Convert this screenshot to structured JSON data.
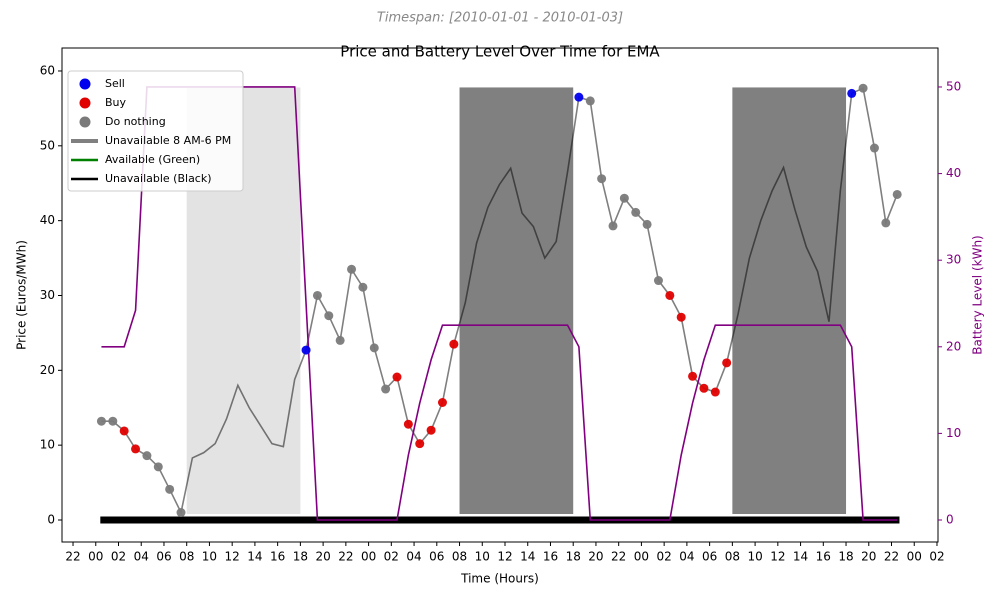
{
  "chart_data": {
    "type": "dual_axis_line",
    "subtitle": "Timespan: [2010-01-01 - 2010-01-03]",
    "title": "Price and Battery Level Over Time for EMA",
    "xlabel": "Time (Hours)",
    "ylabel": "Price (Euros/MWh)",
    "y2label": "Battery Level (kWh)",
    "xlim": [
      -2.97,
      74.09
    ],
    "ylim": [
      -2.94,
      63.07
    ],
    "y2lim": [
      -2.54,
      54.5
    ],
    "xticks": [
      {
        "value": -2,
        "label": "22"
      },
      {
        "value": 0,
        "label": "00"
      },
      {
        "value": 2,
        "label": "02"
      },
      {
        "value": 4,
        "label": "04"
      },
      {
        "value": 6,
        "label": "06"
      },
      {
        "value": 8,
        "label": "08"
      },
      {
        "value": 10,
        "label": "10"
      },
      {
        "value": 12,
        "label": "12"
      },
      {
        "value": 14,
        "label": "14"
      },
      {
        "value": 16,
        "label": "16"
      },
      {
        "value": 18,
        "label": "18"
      },
      {
        "value": 20,
        "label": "20"
      },
      {
        "value": 22,
        "label": "22"
      },
      {
        "value": 24,
        "label": "00"
      },
      {
        "value": 26,
        "label": "02"
      },
      {
        "value": 28,
        "label": "04"
      },
      {
        "value": 30,
        "label": "06"
      },
      {
        "value": 32,
        "label": "08"
      },
      {
        "value": 34,
        "label": "10"
      },
      {
        "value": 36,
        "label": "12"
      },
      {
        "value": 38,
        "label": "14"
      },
      {
        "value": 40,
        "label": "16"
      },
      {
        "value": 42,
        "label": "18"
      },
      {
        "value": 44,
        "label": "20"
      },
      {
        "value": 46,
        "label": "22"
      },
      {
        "value": 48,
        "label": "00"
      },
      {
        "value": 50,
        "label": "02"
      },
      {
        "value": 52,
        "label": "04"
      },
      {
        "value": 54,
        "label": "06"
      },
      {
        "value": 56,
        "label": "08"
      },
      {
        "value": 58,
        "label": "10"
      },
      {
        "value": 60,
        "label": "12"
      },
      {
        "value": 62,
        "label": "14"
      },
      {
        "value": 64,
        "label": "16"
      },
      {
        "value": 66,
        "label": "18"
      },
      {
        "value": 68,
        "label": "20"
      },
      {
        "value": 70,
        "label": "22"
      },
      {
        "value": 72,
        "label": "00"
      },
      {
        "value": 74,
        "label": "02"
      }
    ],
    "yticks": [
      0,
      10,
      20,
      30,
      40,
      50,
      60
    ],
    "y2ticks": [
      0,
      10,
      20,
      30,
      40,
      50
    ],
    "y2color": "purple",
    "x": [
      0.5,
      1.5,
      2.5,
      3.5,
      4.5,
      5.5,
      6.5,
      7.5,
      8.5,
      9.5,
      10.5,
      11.5,
      12.5,
      13.5,
      14.5,
      15.5,
      16.5,
      17.5,
      18.5,
      19.5,
      20.5,
      21.5,
      22.5,
      23.5,
      24.5,
      25.5,
      26.5,
      27.5,
      28.5,
      29.5,
      30.5,
      31.5,
      32.5,
      33.5,
      34.5,
      35.5,
      36.5,
      37.5,
      38.5,
      39.5,
      40.5,
      41.5,
      42.5,
      43.5,
      44.5,
      45.5,
      46.5,
      47.5,
      48.5,
      49.5,
      50.5,
      51.5,
      52.5,
      53.5,
      54.5,
      55.5,
      56.5,
      57.5,
      58.5,
      59.5,
      60.5,
      61.5,
      62.5,
      63.5,
      64.5,
      65.5,
      66.5,
      67.5,
      68.5,
      69.5,
      70.5
    ],
    "price": {
      "color": "black",
      "opacity": 0.5,
      "values": [
        13.2,
        13.2,
        11.9,
        9.5,
        8.6,
        7.1,
        4.1,
        1.0,
        8.3,
        9.0,
        10.2,
        13.5,
        18.0,
        15.0,
        12.6,
        10.2,
        9.8,
        18.8,
        22.7,
        30.0,
        27.3,
        24.0,
        33.5,
        31.1,
        23.0,
        17.5,
        19.1,
        12.8,
        10.2,
        12.0,
        15.7,
        23.5,
        29.0,
        37.0,
        41.8,
        44.8,
        47.0,
        41.0,
        39.2,
        35.0,
        37.2,
        46.5,
        56.5,
        56.0,
        45.6,
        39.3,
        43.0,
        41.1,
        39.5,
        32.0,
        30.0,
        27.1,
        19.2,
        17.6,
        17.1,
        21.0,
        27.5,
        35.0,
        40.0,
        44.0,
        47.1,
        41.5,
        36.5,
        33.2,
        26.5,
        44.0,
        57.0,
        57.7,
        49.7,
        39.7,
        43.5
      ]
    },
    "battery": {
      "color": "purple",
      "axis": "y2",
      "values": [
        20,
        20,
        20,
        24.2,
        50,
        50,
        50,
        50,
        50,
        50,
        50,
        50,
        50,
        50,
        50,
        50,
        50,
        50,
        25,
        0,
        0,
        0,
        0,
        0,
        0,
        0,
        0,
        7.5,
        13.5,
        18.5,
        22.5,
        22.5,
        22.5,
        22.5,
        22.5,
        22.5,
        22.5,
        22.5,
        22.5,
        22.5,
        22.5,
        22.5,
        20,
        0,
        0,
        0,
        0,
        0,
        0,
        0,
        0,
        7.5,
        13.5,
        18.5,
        22.5,
        22.5,
        22.5,
        22.5,
        22.5,
        22.5,
        22.5,
        22.5,
        22.5,
        22.5,
        22.5,
        22.5,
        20,
        0,
        0,
        0,
        0
      ]
    },
    "series": [
      {
        "name": "Sell",
        "color": "#0000ee",
        "x": [
          18.5,
          42.5,
          66.5
        ],
        "values": [
          22.7,
          56.5,
          57.0
        ]
      },
      {
        "name": "Buy",
        "color": "#e00000",
        "x": [
          2.5,
          3.5,
          26.5,
          27.5,
          28.5,
          29.5,
          30.5,
          31.5,
          50.5,
          51.5,
          52.5,
          53.5,
          54.5,
          55.5
        ],
        "values": [
          11.9,
          9.5,
          19.1,
          12.8,
          10.2,
          12.0,
          15.7,
          23.5,
          30.0,
          27.1,
          19.2,
          17.6,
          17.1,
          21.0
        ]
      },
      {
        "name": "Do nothing",
        "color": "#7a7a7a",
        "x": [
          0.5,
          1.5,
          4.5,
          5.5,
          6.5,
          7.5,
          19.5,
          20.5,
          21.5,
          22.5,
          23.5,
          24.5,
          25.5,
          43.5,
          44.5,
          45.5,
          46.5,
          47.5,
          48.5,
          49.5,
          67.5,
          68.5,
          69.5,
          70.5
        ],
        "values": [
          13.2,
          13.2,
          8.6,
          7.1,
          4.1,
          1.0,
          30.0,
          27.3,
          24.0,
          33.5,
          31.1,
          23.0,
          17.5,
          56.0,
          45.6,
          39.3,
          43.0,
          41.1,
          39.5,
          32.0,
          57.7,
          49.7,
          39.7,
          43.5
        ]
      }
    ],
    "unavailable": {
      "name": "Unavailable 8 AM-6 PM",
      "color": "gray",
      "bottom": 0.8,
      "top": 57.8,
      "windows": [
        {
          "start": 8,
          "end": 18,
          "color": "#e3e3e3"
        },
        {
          "start": 32,
          "end": 42,
          "color": "#808080"
        },
        {
          "start": 56,
          "end": 66,
          "color": "#808080"
        }
      ]
    },
    "available": {
      "name": "Available (Green)",
      "color": "green"
    },
    "unavailable_bar": {
      "name": "Unavailable (Black)",
      "color": "black",
      "start": 0.4,
      "end": 70.7,
      "value": 0
    },
    "legend": "upper left"
  }
}
